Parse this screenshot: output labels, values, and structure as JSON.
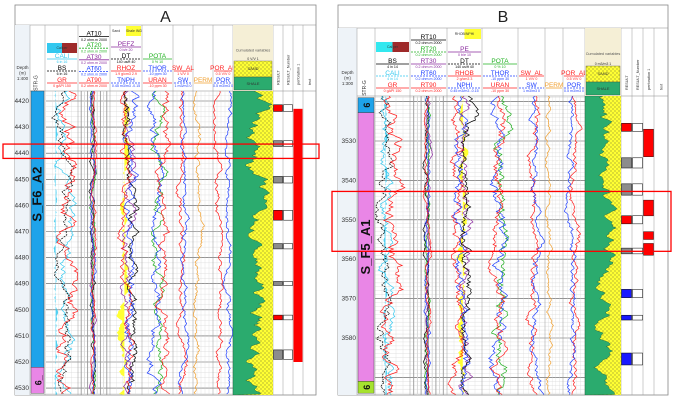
{
  "chart_data": [
    {
      "type": "well-log",
      "title": "A",
      "depth_header": "Depth (m) 1:400",
      "strat_header": "STR-G",
      "depth_ticks": [
        4420,
        4430,
        4440,
        4450,
        4460,
        4470,
        4480,
        4490,
        4500,
        4510,
        4520,
        4530
      ],
      "depth_range": [
        4416,
        4532
      ],
      "zones": [
        {
          "name": "S_F6_A2",
          "top": 4416,
          "base": 4522,
          "color": "#1ea3ea"
        },
        {
          "name": "6_",
          "top": 4522,
          "base": 4532,
          "color": "#e986e6"
        }
      ],
      "highlight_interval": [
        4436.5,
        4442
      ],
      "tracks": [
        {
          "box": {
            "left": "Caliper",
            "left_color": "#33c8ef",
            "right_color": "#9e2a2a"
          },
          "curves": [
            {
              "name": "CALI",
              "scale": "6  in  16",
              "color": "#33c8ef"
            },
            {
              "name": "BS",
              "scale": "6  in  16",
              "color": "#000000"
            },
            {
              "name": "GR",
              "scale": "0  gAPI  150",
              "color": "#ff2020"
            }
          ]
        },
        {
          "curves": [
            {
              "name": "AT10",
              "scale": "0.2  ohm.m  2000",
              "color": "#000000"
            },
            {
              "name": "AT20",
              "scale": "0.2  ohm.m  2000",
              "color": "#20b020"
            },
            {
              "name": "AT30",
              "scale": "0.2  ohm.m  2000",
              "color": "#8a2a9e"
            },
            {
              "name": "AT60",
              "scale": "0.2  ohm.m  2000",
              "color": "#2040ff"
            },
            {
              "name": "AT90",
              "scale": "0.2  ohm.m  2000",
              "color": "#ff2020"
            }
          ]
        },
        {
          "box": {
            "left": "Sand",
            "right": "Shale IND",
            "right_color": "#ffff33"
          },
          "curves": [
            {
              "name": "PEFZ",
              "scale": "0  b/e  20",
              "color": "#8a2a9e"
            },
            {
              "name": "DT",
              "scale": "140  us/ft  40",
              "color": "#000000"
            },
            {
              "name": "RHOZ",
              "scale": "1.9  g/cm3  2.9",
              "color": "#ff2020"
            },
            {
              "name": "TNPH",
              "scale": "0.45  m3/m3  -0.15",
              "color": "#2040ff"
            }
          ]
        },
        {
          "curves": [
            {
              "name": "POTA",
              "scale": "0  %  10",
              "color": "#20b020"
            },
            {
              "name": "THOR",
              "scale": "-10  ppm  30",
              "color": "#2040ff"
            },
            {
              "name": "URAN",
              "scale": "-10  ppm  30",
              "color": "#ff2020"
            }
          ]
        },
        {
          "curves": [
            {
              "name": "SW_AL",
              "scale": "1  V/V  0",
              "color": "#ff2020"
            },
            {
              "name": "SW",
              "scale": "1  m3/m3  0",
              "color": "#2040ff"
            }
          ]
        },
        {
          "curves": [
            {
              "name": "PERM",
              "scale": "",
              "color": "#f0a030"
            }
          ]
        },
        {
          "curves": [
            {
              "name": "POR_AL",
              "scale": "0.5  V/V  0",
              "color": "#ff2020"
            },
            {
              "name": "POR",
              "scale": "0.5  m3/m3  0",
              "color": "#2040ff"
            }
          ]
        },
        {
          "lithology": {
            "title": "Cumulated variables",
            "scale": "0  V/V  1",
            "sand": "SAND",
            "shale": "SHALE"
          }
        }
      ],
      "result_columns": [
        "RESULT",
        "RESULT_Number",
        "perforation 1",
        "text"
      ]
    },
    {
      "type": "well-log",
      "title": "B",
      "depth_header": "Depth (m) 1:300",
      "strat_header": "STR-G",
      "depth_ticks": [
        3530,
        3540,
        3550,
        3560,
        3570,
        3580
      ],
      "depth_range": [
        3519,
        3594
      ],
      "zones": [
        {
          "name": "6",
          "top": 3519,
          "base": 3522.8,
          "color": "#1ea3ea"
        },
        {
          "name": "S_F5_A1",
          "top": 3522.8,
          "base": 3591,
          "color": "#e986e6"
        },
        {
          "name": "6",
          "top": 3591,
          "base": 3594,
          "color": "#a6e22e"
        }
      ],
      "highlight_interval": [
        3542.8,
        3558
      ],
      "tracks": [
        {
          "box": {
            "left": "Caliper",
            "left_color": "#33e8ef",
            "right_color": "#9e2a2a"
          },
          "curves": [
            {
              "name": "BS",
              "scale": "4  in  14",
              "color": "#000000"
            },
            {
              "name": "CALI",
              "scale": "4  in  14",
              "color": "#33c8ef"
            },
            {
              "name": "GR",
              "scale": "0  gAPI  150",
              "color": "#ff2020"
            }
          ]
        },
        {
          "curves": [
            {
              "name": "RT10",
              "scale": "0.2  ohm.m  2000",
              "color": "#000000"
            },
            {
              "name": "RT20",
              "scale": "0.2  ohm.m  2000",
              "color": "#20b020"
            },
            {
              "name": "RT30",
              "scale": "0.2  ohm.m  2000",
              "color": "#8a2a9e"
            },
            {
              "name": "RT60",
              "scale": "0.2  ohm.m  2000",
              "color": "#2040ff"
            },
            {
              "name": "RT90",
              "scale": "0.2  ohm.m  2000",
              "color": "#ff2020"
            }
          ]
        },
        {
          "box": {
            "left": "RHOB/NPHI",
            "right_color": "#ffff33"
          },
          "curves": [
            {
              "name": "PE",
              "scale": "0  b/e  10",
              "color": "#8a2a9e"
            },
            {
              "name": "DT",
              "scale": "140  us/ft  40",
              "color": "#000000"
            },
            {
              "name": "RHOB",
              "scale": "2  g/cm3  3",
              "color": "#ff2020"
            },
            {
              "name": "NPHI",
              "scale": "0.45  m3/m3  -0.15",
              "color": "#2040ff"
            }
          ]
        },
        {
          "curves": [
            {
              "name": "POTA",
              "scale": "0  %  10",
              "color": "#20b020"
            },
            {
              "name": "THOR",
              "scale": "-10  ppm  30",
              "color": "#2040ff"
            },
            {
              "name": "URAN",
              "scale": "-10  ppm  30",
              "color": "#ff2020"
            }
          ]
        },
        {
          "curves": [
            {
              "name": "SW_AL",
              "scale": "1  V/V  0",
              "color": "#ff2020"
            },
            {
              "name": "SW",
              "scale": "1  m3/m3  0",
              "color": "#2040ff"
            }
          ]
        },
        {
          "curves": [
            {
              "name": "PERM",
              "scale": "",
              "color": "#f0a030"
            }
          ]
        },
        {
          "curves": [
            {
              "name": "POR_AL",
              "scale": "0.5  V/V  0",
              "color": "#ff2020"
            },
            {
              "name": "POR",
              "scale": "0.5  m3/m3  0",
              "color": "#2040ff"
            }
          ]
        },
        {
          "lithology": {
            "title": "Cumulated variables",
            "scale": "0  m3/m3  1",
            "sand": "SAND",
            "shale": "SHALE"
          }
        }
      ],
      "result_columns": [
        "RESULT",
        "RESULT_Number",
        "perforation 1",
        "text"
      ]
    }
  ],
  "colors": {
    "sand": "#ffff33",
    "shale": "#2bab6e",
    "highlight": "#ff0000",
    "perforation": "#ff0000",
    "water": "#1a1aff",
    "result_gray": "#8c8c8c"
  }
}
